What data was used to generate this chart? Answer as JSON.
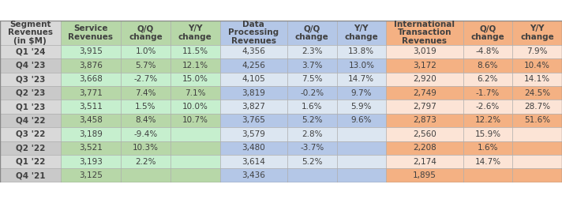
{
  "header_texts": [
    "Segment\nRevenues\n(in $M)",
    "Service\nRevenues",
    "Q/Q\nchange",
    "Y/Y\nchange",
    "Data\nProcessing\nRevenues",
    "Q/Q\nchange",
    "Y/Y\nchange",
    "International\nTransaction\nRevenues",
    "Q/Q\nchange",
    "Y/Y\nchange"
  ],
  "rows": [
    [
      "Q1 '24",
      "3,915",
      "1.0%",
      "11.5%",
      "4,356",
      "2.3%",
      "13.8%",
      "3,019",
      "-4.8%",
      "7.9%"
    ],
    [
      "Q4 '23",
      "3,876",
      "5.7%",
      "12.1%",
      "4,256",
      "3.7%",
      "13.0%",
      "3,172",
      "8.6%",
      "10.4%"
    ],
    [
      "Q3 '23",
      "3,668",
      "-2.7%",
      "15.0%",
      "4,105",
      "7.5%",
      "14.7%",
      "2,920",
      "6.2%",
      "14.1%"
    ],
    [
      "Q2 '23",
      "3,771",
      "7.4%",
      "7.1%",
      "3,819",
      "-0.2%",
      "9.7%",
      "2,749",
      "-1.7%",
      "24.5%"
    ],
    [
      "Q1 '23",
      "3,511",
      "1.5%",
      "10.0%",
      "3,827",
      "1.6%",
      "5.9%",
      "2,797",
      "-2.6%",
      "28.7%"
    ],
    [
      "Q4 '22",
      "3,458",
      "8.4%",
      "10.7%",
      "3,765",
      "5.2%",
      "9.6%",
      "2,873",
      "12.2%",
      "51.6%"
    ],
    [
      "Q3 '22",
      "3,189",
      "-9.4%",
      "",
      "3,579",
      "2.8%",
      "",
      "2,560",
      "15.9%",
      ""
    ],
    [
      "Q2 '22",
      "3,521",
      "10.3%",
      "",
      "3,480",
      "-3.7%",
      "",
      "2,208",
      "1.6%",
      ""
    ],
    [
      "Q1 '22",
      "3,193",
      "2.2%",
      "",
      "3,614",
      "5.2%",
      "",
      "2,174",
      "14.7%",
      ""
    ],
    [
      "Q4 '21",
      "3,125",
      "",
      "",
      "3,436",
      "",
      "",
      "1,895",
      "",
      ""
    ]
  ],
  "col_bg": [
    "#d9d9d9",
    "#b7d7a8",
    "#b7d7a8",
    "#b7d7a8",
    "#b4c7e7",
    "#b4c7e7",
    "#b4c7e7",
    "#f4b183",
    "#f4b183",
    "#f4b183"
  ],
  "header_bg": [
    "#d9d9d9",
    "#b7d7a8",
    "#b7d7a8",
    "#b7d7a8",
    "#b4c7e7",
    "#b4c7e7",
    "#b4c7e7",
    "#f4b183",
    "#f4b183",
    "#f4b183"
  ],
  "row_label_colors": [
    "#d9d9d9",
    "#c9c9c9"
  ],
  "row_data_colors_green": [
    "#c6efce",
    "#b7d7a8"
  ],
  "row_data_colors_blue": [
    "#dce6f1",
    "#b4c7e7"
  ],
  "row_data_colors_orange": [
    "#fce4d6",
    "#f4b183"
  ],
  "text_color": "#404040",
  "header_text_color": "#404040",
  "font_size": 7.5,
  "header_font_size": 7.5,
  "col_widths": [
    0.88,
    0.88,
    0.72,
    0.72,
    0.98,
    0.72,
    0.72,
    1.12,
    0.72,
    0.72
  ]
}
